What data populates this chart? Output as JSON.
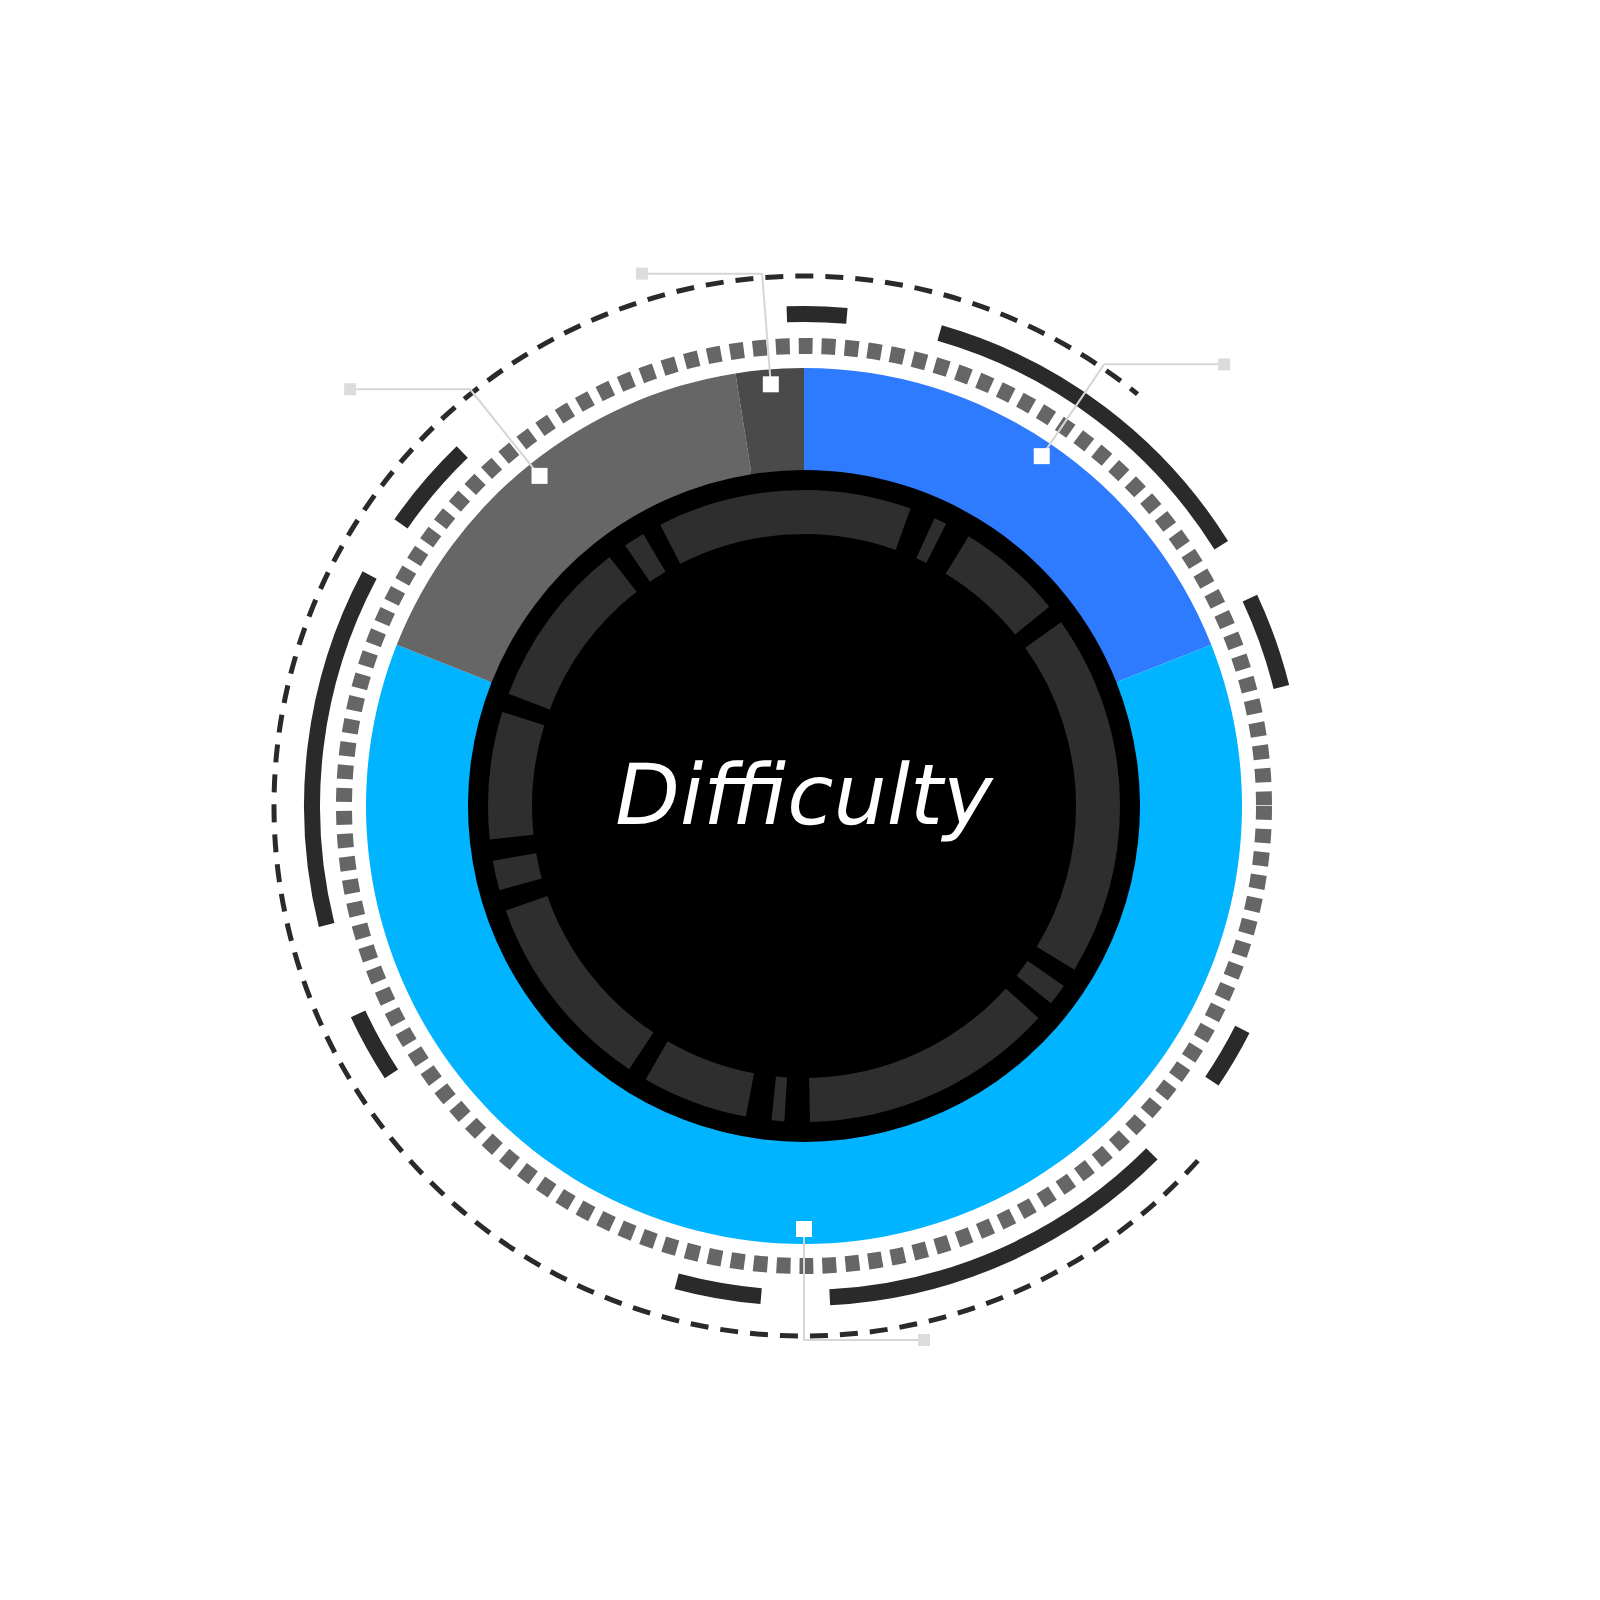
{
  "chart_data": {
    "type": "donut",
    "title": "Difficulty",
    "categories": [
      null,
      null,
      null,
      null
    ],
    "values": [
      19,
      62,
      16.5,
      2.5
    ],
    "colors": [
      "#2f7bff",
      "#00b4ff",
      "#666666",
      "#4a4a4a"
    ]
  }
}
